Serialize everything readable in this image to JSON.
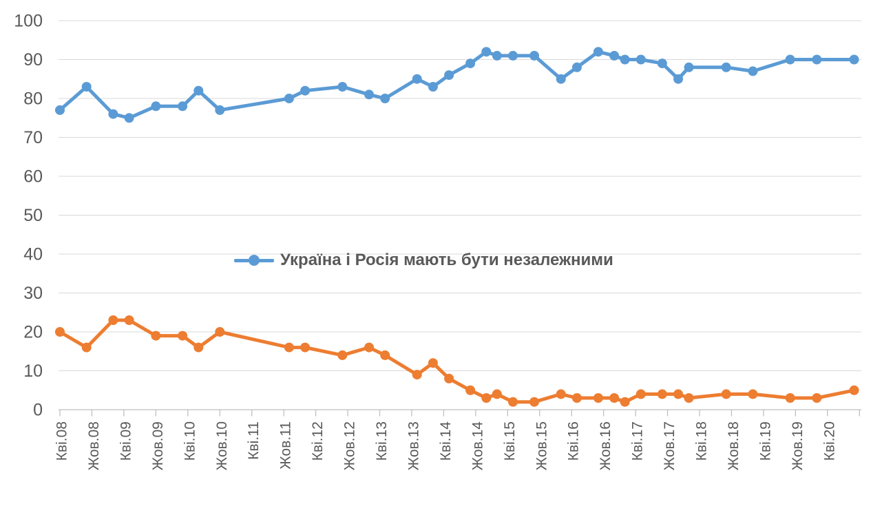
{
  "chart_data": {
    "type": "line",
    "title": "",
    "background": "#ffffff",
    "text_color": "#595959",
    "gridline_color": "#d9d9d9",
    "axis_color": "#bfbfbf",
    "grid": true,
    "y_axis": {
      "min": 0,
      "max": 100,
      "step": 10,
      "tick_labels": [
        "100",
        "90",
        "80",
        "70",
        "60",
        "50",
        "40",
        "30",
        "20",
        "10",
        "0"
      ]
    },
    "x_axis": {
      "months_per_tick": 6,
      "extra_unlabeled_ticks": 1,
      "tick_labels": [
        "Кві.08",
        "Жов.08",
        "Кві.09",
        "Жов.09",
        "Кві.10",
        "Жов.10",
        "Кві.11",
        "Жов.11",
        "Кві.12",
        "Жов.12",
        "Кві.13",
        "Жов.13",
        "Кві.14",
        "Жов.14",
        "Кві.15",
        "Жов.15",
        "Кві.16",
        "Жов.16",
        "Кві.17",
        "Жов.17",
        "Кві.18",
        "Жов.18",
        "Кві.19",
        "Жов.19",
        "Кві.20"
      ]
    },
    "legend": {
      "label": "Україна і Росія мають бути незалежними",
      "color": "#5b9bd5",
      "position": "center"
    },
    "series": [
      {
        "id": "independent",
        "color": "#5b9bd5",
        "x_months": [
          0,
          5,
          10,
          13,
          18,
          23,
          26,
          30,
          43,
          46,
          53,
          58,
          61,
          67,
          70,
          73,
          77,
          80,
          82,
          85,
          89,
          94,
          97,
          101,
          104,
          106,
          109,
          113,
          116,
          118,
          125,
          130,
          137,
          142,
          149
        ],
        "values": [
          77,
          83,
          76,
          75,
          78,
          78,
          82,
          77,
          80,
          82,
          83,
          81,
          80,
          85,
          83,
          86,
          89,
          92,
          91,
          91,
          91,
          85,
          88,
          92,
          91,
          90,
          90,
          89,
          85,
          88,
          88,
          87,
          90,
          90,
          90
        ]
      },
      {
        "id": "orange-series",
        "color": "#ed7d31",
        "x_months": [
          0,
          5,
          10,
          13,
          18,
          23,
          26,
          30,
          43,
          46,
          53,
          58,
          61,
          67,
          70,
          73,
          77,
          80,
          82,
          85,
          89,
          94,
          97,
          101,
          104,
          106,
          109,
          113,
          116,
          118,
          125,
          130,
          137,
          142,
          149
        ],
        "values": [
          20,
          16,
          23,
          23,
          19,
          19,
          16,
          20,
          16,
          16,
          14,
          16,
          14,
          9,
          12,
          8,
          5,
          3,
          4,
          2,
          2,
          4,
          3,
          3,
          3,
          2,
          4,
          4,
          4,
          3,
          4,
          4,
          3,
          3,
          5
        ]
      }
    ]
  }
}
